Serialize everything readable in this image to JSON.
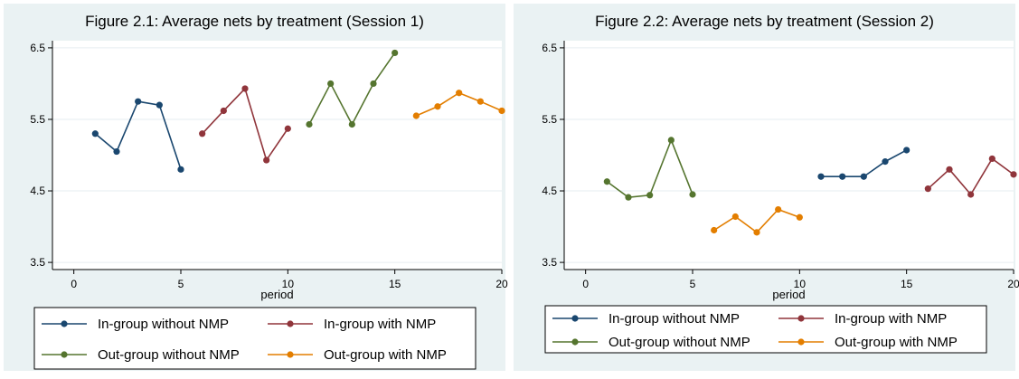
{
  "colors": {
    "panel_bg": "#eaf2f3",
    "plot_bg": "#ffffff",
    "grid": "#e6eef0",
    "In-group without NMP": "#1a476f",
    "In-group with NMP": "#90353b",
    "Out-group without NMP": "#55752f",
    "Out-group with NMP": "#e37e00"
  },
  "legend_labels": [
    "In-group without NMP",
    "In-group with NMP",
    "Out-group without NMP",
    "Out-group with NMP"
  ],
  "chart_data": [
    {
      "type": "line",
      "title": "Figure 2.1: Average nets by treatment (Session 1)",
      "xlabel": "period",
      "ylabel": "",
      "xlim": [
        -1,
        20
      ],
      "ylim": [
        3.4,
        6.6
      ],
      "xticks": [
        0,
        5,
        10,
        15,
        20
      ],
      "yticks": [
        3.5,
        4.5,
        5.5,
        6.5
      ],
      "grid": true,
      "legend_position": "bottom",
      "series": [
        {
          "name": "In-group without NMP",
          "x": [
            1,
            2,
            3,
            4,
            5
          ],
          "y": [
            5.3,
            5.05,
            5.75,
            5.7,
            4.8
          ]
        },
        {
          "name": "In-group with NMP",
          "x": [
            6,
            7,
            8,
            9,
            10
          ],
          "y": [
            5.3,
            5.62,
            5.93,
            4.93,
            5.37
          ]
        },
        {
          "name": "Out-group without NMP",
          "x": [
            11,
            12,
            13,
            14,
            15
          ],
          "y": [
            5.43,
            6.0,
            5.43,
            6.0,
            6.43
          ]
        },
        {
          "name": "Out-group with NMP",
          "x": [
            16,
            17,
            18,
            19,
            20
          ],
          "y": [
            5.55,
            5.68,
            5.87,
            5.75,
            5.62
          ]
        }
      ]
    },
    {
      "type": "line",
      "title": "Figure 2.2: Average nets by treatment (Session 2)",
      "xlabel": "period",
      "ylabel": "",
      "xlim": [
        -1,
        20
      ],
      "ylim": [
        3.4,
        6.6
      ],
      "xticks": [
        0,
        5,
        10,
        15,
        20
      ],
      "yticks": [
        3.5,
        4.5,
        5.5,
        6.5
      ],
      "grid": true,
      "legend_position": "bottom",
      "series": [
        {
          "name": "In-group without NMP",
          "x": [
            11,
            12,
            13,
            14,
            15
          ],
          "y": [
            4.7,
            4.7,
            4.7,
            4.91,
            5.07
          ]
        },
        {
          "name": "In-group with NMP",
          "x": [
            16,
            17,
            18,
            19,
            20
          ],
          "y": [
            4.53,
            4.8,
            4.45,
            4.95,
            4.73
          ]
        },
        {
          "name": "Out-group without NMP",
          "x": [
            1,
            2,
            3,
            4,
            5
          ],
          "y": [
            4.63,
            4.41,
            4.44,
            5.21,
            4.45
          ]
        },
        {
          "name": "Out-group with NMP",
          "x": [
            6,
            7,
            8,
            9,
            10
          ],
          "y": [
            3.95,
            4.14,
            3.92,
            4.24,
            4.13
          ]
        }
      ]
    }
  ]
}
